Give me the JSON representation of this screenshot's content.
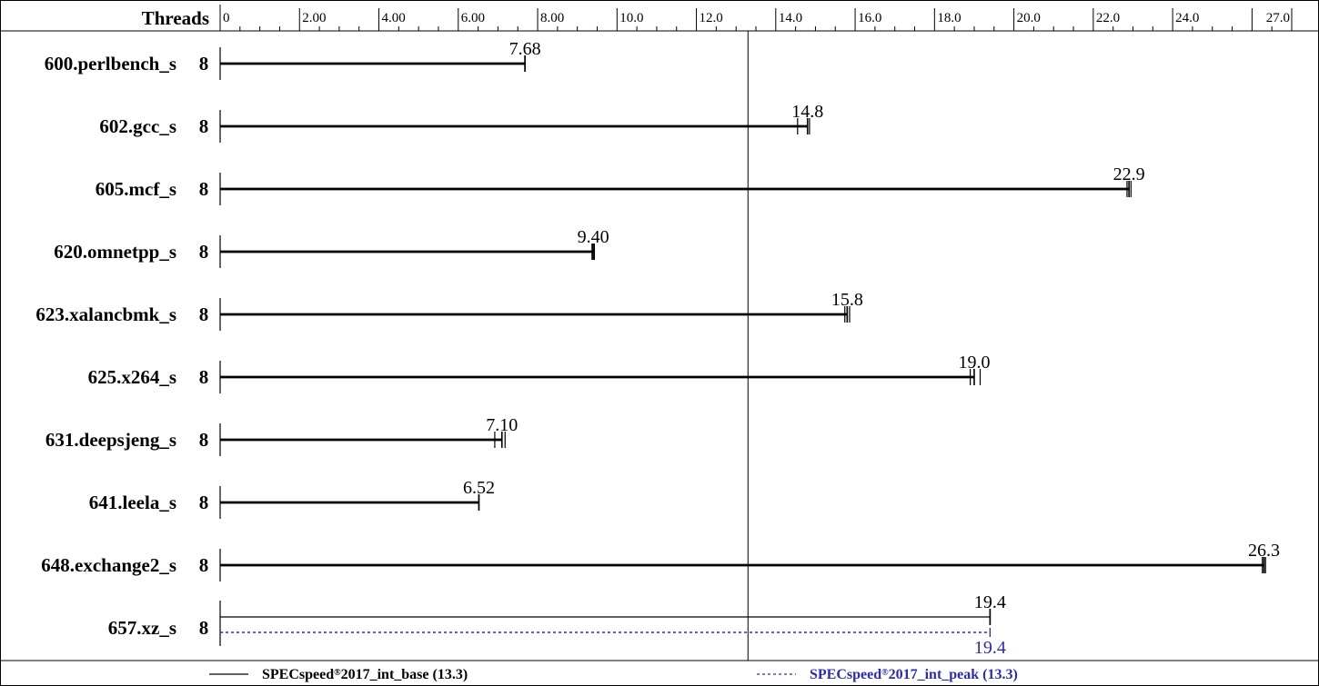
{
  "chart_data": {
    "type": "bar",
    "orientation": "horizontal",
    "header_label": "Threads",
    "x_ticks": [
      "0",
      "2.00",
      "4.00",
      "6.00",
      "8.00",
      "10.0",
      "12.0",
      "14.0",
      "16.0",
      "18.0",
      "20.0",
      "22.0",
      "24.0",
      "27.0"
    ],
    "xlim": [
      0,
      27
    ],
    "benchmarks": [
      {
        "name": "600.perlbench_s",
        "threads": "8",
        "base": 7.68,
        "base_label": "7.68",
        "base_runs": [
          7.68,
          7.68
        ]
      },
      {
        "name": "602.gcc_s",
        "threads": "8",
        "base": 14.8,
        "base_label": "14.8",
        "base_runs": [
          14.55,
          14.85
        ]
      },
      {
        "name": "605.mcf_s",
        "threads": "8",
        "base": 22.9,
        "base_label": "22.9",
        "base_runs": [
          22.85,
          22.95
        ]
      },
      {
        "name": "620.omnetpp_s",
        "threads": "8",
        "base": 9.4,
        "base_label": "9.40",
        "base_runs": [
          9.37,
          9.43
        ]
      },
      {
        "name": "623.xalancbmk_s",
        "threads": "8",
        "base": 15.8,
        "base_label": "15.8",
        "base_runs": [
          15.74,
          15.8,
          15.86
        ]
      },
      {
        "name": "625.x264_s",
        "threads": "8",
        "base": 19.0,
        "base_label": "19.0",
        "base_runs": [
          18.9,
          19.15
        ]
      },
      {
        "name": "631.deepsjeng_s",
        "threads": "8",
        "base": 7.1,
        "base_label": "7.10",
        "base_runs": [
          6.92,
          7.18
        ]
      },
      {
        "name": "641.leela_s",
        "threads": "8",
        "base": 6.52,
        "base_label": "6.52",
        "base_runs": [
          6.52,
          6.52
        ]
      },
      {
        "name": "648.exchange2_s",
        "threads": "8",
        "base": 26.3,
        "base_label": "26.3",
        "base_runs": [
          26.26,
          26.34
        ]
      },
      {
        "name": "657.xz_s",
        "threads": "8",
        "base": 19.4,
        "base_label": "19.4",
        "base_runs": [
          19.4,
          19.4
        ],
        "peak": 19.4,
        "peak_label": "19.4",
        "peak_runs": [
          19.4,
          19.4
        ]
      }
    ],
    "reference_line": 13.3,
    "legend": {
      "placement": "bottom",
      "base": {
        "prefix": "SPECspeed",
        "reg": "®",
        "suffix": "2017_int_base (13.3)",
        "color": "#000000"
      },
      "peak": {
        "prefix": "SPECspeed",
        "reg": "®",
        "suffix": "2017_int_peak (13.3)",
        "color": "#2a2ab8"
      }
    },
    "colors": {
      "base": "#000000",
      "peak": "#2a2ab8",
      "frame": "#000000"
    }
  }
}
